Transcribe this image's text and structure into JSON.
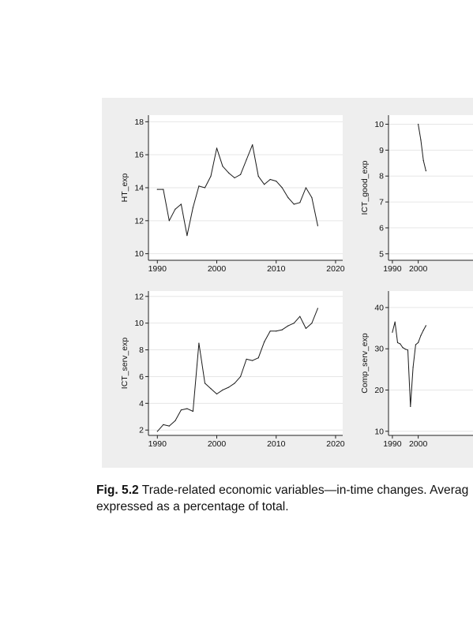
{
  "caption": {
    "label": "Fig. 5.2",
    "line1": "Trade-related economic variables—in-time changes. Averag",
    "line2": "expressed as a percentage of total."
  },
  "colors": {
    "figure_background": "#eeeeee",
    "plot_background": "#ffffff",
    "line": "#1a1a1a",
    "grid": "#e6e6e6"
  },
  "chart_data": [
    {
      "type": "line",
      "ylabel": "HT_exp",
      "xlim": [
        1990,
        2020
      ],
      "ylim": [
        10,
        18
      ],
      "xticks": [
        1990,
        2000,
        2010,
        2020
      ],
      "yticks": [
        10,
        12,
        14,
        16,
        18
      ],
      "grid": true,
      "x": [
        1990,
        1991,
        1992,
        1993,
        1994,
        1995,
        1996,
        1997,
        1998,
        1999,
        2000,
        2001,
        2002,
        2003,
        2004,
        2005,
        2006,
        2007,
        2008,
        2009,
        2010,
        2011,
        2012,
        2013,
        2014,
        2015,
        2016,
        2017
      ],
      "y": [
        13.9,
        13.9,
        12.0,
        12.7,
        13.0,
        11.1,
        12.8,
        14.1,
        14.0,
        14.7,
        16.4,
        15.3,
        14.9,
        14.6,
        14.8,
        15.7,
        16.6,
        14.7,
        14.2,
        14.5,
        14.4,
        14.0,
        13.4,
        13.0,
        13.1,
        14.0,
        13.4,
        11.7
      ]
    },
    {
      "type": "line",
      "ylabel": "ICT_good_exp",
      "xlim": [
        1990,
        2020
      ],
      "ylim": [
        5,
        10
      ],
      "xticks": [
        1990,
        2000
      ],
      "yticks": [
        5,
        6,
        7,
        8,
        9,
        10
      ],
      "grid": true,
      "x": [
        2000,
        2001,
        2002,
        2003
      ],
      "y": [
        10.0,
        9.4,
        8.6,
        8.2
      ]
    },
    {
      "type": "line",
      "ylabel": "ICT_serv_exp",
      "xlim": [
        1990,
        2020
      ],
      "ylim": [
        2,
        12
      ],
      "xticks": [
        1990,
        2000,
        2010,
        2020
      ],
      "yticks": [
        2,
        4,
        6,
        8,
        10,
        12
      ],
      "grid": true,
      "x": [
        1990,
        1991,
        1992,
        1993,
        1994,
        1995,
        1996,
        1997,
        1998,
        1999,
        2000,
        2001,
        2002,
        2003,
        2004,
        2005,
        2006,
        2007,
        2008,
        2009,
        2010,
        2011,
        2012,
        2013,
        2014,
        2015,
        2016,
        2017
      ],
      "y": [
        1.9,
        2.4,
        2.3,
        2.7,
        3.5,
        3.6,
        3.4,
        8.5,
        5.5,
        5.1,
        4.7,
        5.0,
        5.2,
        5.5,
        6.0,
        7.3,
        7.2,
        7.4,
        8.6,
        9.4,
        9.4,
        9.5,
        9.8,
        10.0,
        10.5,
        9.6,
        10.0,
        11.1
      ]
    },
    {
      "type": "line",
      "ylabel": "Comp_serv_exp",
      "xlim": [
        1990,
        2020
      ],
      "ylim": [
        10,
        42
      ],
      "xticks": [
        1990,
        2000
      ],
      "yticks": [
        10,
        20,
        30,
        40
      ],
      "grid": true,
      "x": [
        1990,
        1991,
        1992,
        1993,
        1994,
        1995,
        1996,
        1997,
        1998,
        1999,
        2000,
        2001,
        2002,
        2003
      ],
      "y": [
        34.0,
        36.5,
        31.5,
        31.2,
        30.3,
        29.9,
        29.7,
        16.0,
        25.5,
        31.0,
        31.5,
        33.2,
        34.5,
        35.6
      ]
    }
  ]
}
